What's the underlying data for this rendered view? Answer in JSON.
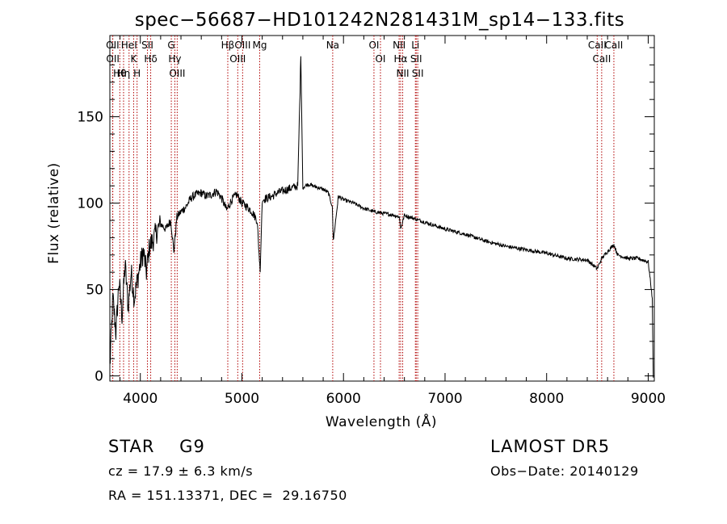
{
  "chart_data": {
    "type": "line",
    "title": "spec−56687−HD101242N281431M_sp14−133.fits",
    "xlabel": "Wavelength (Å)",
    "ylabel": "Flux (relative)",
    "xlim": [
      3700,
      9060
    ],
    "ylim": [
      -3,
      197
    ],
    "xticks": [
      4000,
      5000,
      6000,
      7000,
      8000,
      9000
    ],
    "yticks": [
      0,
      50,
      100,
      150
    ],
    "grid": false,
    "series": [
      {
        "x": [
          3700,
          3730,
          3760,
          3790,
          3820,
          3850,
          3880,
          3910,
          3940,
          3970,
          4000,
          4030,
          4060,
          4090,
          4120,
          4150,
          4200,
          4250,
          4300,
          4330,
          4360,
          4400,
          4450,
          4500,
          4550,
          4600,
          4650,
          4700,
          4750,
          4800,
          4850,
          4900,
          4950,
          5000,
          5050,
          5100,
          5150,
          5180,
          5200,
          5250,
          5300,
          5350,
          5400,
          5450,
          5500,
          5550,
          5580,
          5600,
          5650,
          5700,
          5750,
          5800,
          5850,
          5890,
          5900,
          5950,
          6000,
          6100,
          6200,
          6300,
          6400,
          6500,
          6550,
          6563,
          6600,
          6700,
          6800,
          6900,
          7000,
          7200,
          7400,
          7600,
          7800,
          8000,
          8200,
          8400,
          8498,
          8542,
          8600,
          8662,
          8700,
          8800,
          8900,
          9000,
          9040,
          9050
        ],
        "y": [
          5,
          45,
          25,
          55,
          35,
          65,
          40,
          60,
          45,
          55,
          65,
          72,
          60,
          75,
          78,
          82,
          88,
          85,
          90,
          72,
          92,
          95,
          98,
          103,
          105,
          106,
          104,
          105,
          107,
          103,
          96,
          102,
          105,
          100,
          98,
          95,
          90,
          60,
          102,
          103,
          104,
          106,
          107,
          108,
          109,
          110,
          185,
          109,
          111,
          110,
          109,
          108,
          106,
          98,
          78,
          104,
          102,
          100,
          97,
          95,
          94,
          93,
          92,
          85,
          93,
          91,
          89,
          87,
          85,
          82,
          78,
          75,
          73,
          71,
          68,
          67,
          62,
          68,
          72,
          76,
          70,
          68,
          68,
          66,
          45,
          -1
        ]
      }
    ],
    "lines": [
      {
        "label": "Hθ",
        "x": 3798
      },
      {
        "label": "OII",
        "x": 3727
      },
      {
        "label": "OII",
        "x": 3729
      },
      {
        "label": "HeI",
        "x": 3889
      },
      {
        "label": "K",
        "x": 3934
      },
      {
        "label": "H",
        "x": 3968
      },
      {
        "label": "Hη",
        "x": 3835
      },
      {
        "label": "Hδ",
        "x": 4102
      },
      {
        "label": "SII",
        "x": 4070
      },
      {
        "label": "OIII",
        "x": 4363
      },
      {
        "label": "Hγ",
        "x": 4340
      },
      {
        "label": "G",
        "x": 4305
      },
      {
        "label": "OIII",
        "x": 5007
      },
      {
        "label": "OIII",
        "x": 4959
      },
      {
        "label": "Hβ",
        "x": 4861
      },
      {
        "label": "Mg",
        "x": 5175
      },
      {
        "label": "Na",
        "x": 5894
      },
      {
        "label": "OI",
        "x": 6300
      },
      {
        "label": "OI",
        "x": 6364
      },
      {
        "label": "Hα",
        "x": 6563
      },
      {
        "label": "NII",
        "x": 6548
      },
      {
        "label": "NII",
        "x": 6583
      },
      {
        "label": "SII",
        "x": 6716
      },
      {
        "label": "Li",
        "x": 6708
      },
      {
        "label": "SII",
        "x": 6731
      },
      {
        "label": "CaII",
        "x": 8542
      },
      {
        "label": "CaII",
        "x": 8498
      },
      {
        "label": "CaII",
        "x": 8662
      }
    ]
  },
  "info": {
    "class": "STAR    G9",
    "survey": "LAMOST DR5",
    "cz": "cz = 17.9 ± 6.3 km/s",
    "obs_date": "Obs−Date: 20140129",
    "radec": "RA = 151.13371, DEC =  29.16750"
  }
}
